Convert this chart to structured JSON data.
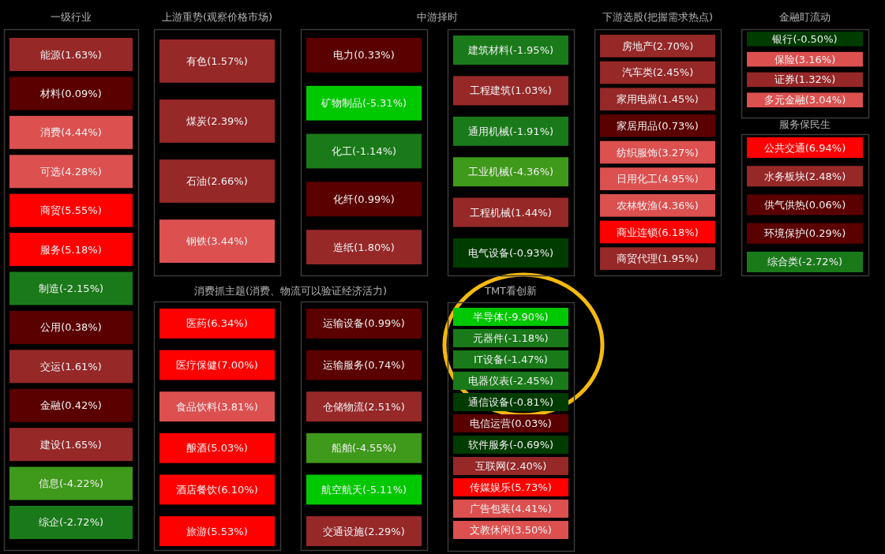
{
  "chart_data": [
    {
      "type": "other",
      "title": "一级行业",
      "values": [
        1.63,
        0.09,
        4.44,
        4.28,
        5.55,
        5.18,
        -2.15,
        0.38,
        1.61,
        0.42,
        1.65,
        -4.22,
        -2.72
      ],
      "value_labels": [
        "能源(1.63%)",
        "材料(0.09%)",
        "消费(4.44%)",
        "可选(4.28%)",
        "商贸(5.55%)",
        "服务(5.18%)",
        "制造(-2.15%)",
        "公用(0.38%)",
        "交运(1.61%)",
        "金融(0.42%)",
        "建设(1.65%)",
        "信息(-4.22%)",
        "综企(-2.72%)"
      ]
    },
    {
      "type": "other",
      "title": "上游重势(观察价格市场)",
      "values": [
        1.57,
        2.39,
        2.66,
        3.44
      ],
      "value_labels": [
        "有色(1.57%)",
        "煤炭(2.39%)",
        "石油(2.66%)",
        "钢铁(3.44%)"
      ]
    },
    {
      "type": "other",
      "title": "中游择时",
      "values": [
        0.33,
        -5.31,
        -1.14,
        0.99,
        1.8
      ],
      "value_labels": [
        "电力(0.33%)",
        "矿物制品(-5.31%)",
        "化工(-1.14%)",
        "化纤(0.99%)",
        "造纸(1.80%)"
      ]
    },
    {
      "type": "other",
      "values": [
        -1.95,
        1.03,
        -1.91,
        -4.36,
        1.44,
        -0.93
      ],
      "value_labels": [
        "建筑材料(-1.95%)",
        "工程建筑(1.03%)",
        "通用机械(-1.91%)",
        "工业机械(-4.36%)",
        "工程机械(1.44%)",
        "电气设备(-0.93%)"
      ]
    },
    {
      "type": "other",
      "title": "下游选股(把握需求热点)",
      "values": [
        2.7,
        2.45,
        1.45,
        0.73,
        3.27,
        4.95,
        4.36,
        6.18,
        1.95
      ],
      "value_labels": [
        "房地产(2.70%)",
        "汽车类(2.45%)",
        "家用电器(1.45%)",
        "家居用品(0.73%)",
        "纺织服饰(3.27%)",
        "日用化工(4.95%)",
        "农林牧渔(4.36%)",
        "商业连锁(6.18%)",
        "商贸代理(1.95%)"
      ]
    },
    {
      "type": "other",
      "title": "金融盯流动",
      "values": [
        -0.5,
        3.16,
        1.32,
        3.04
      ],
      "value_labels": [
        "银行(-0.50%)",
        "保险(3.16%)",
        "证券(1.32%)",
        "多元金融(3.04%)"
      ]
    },
    {
      "type": "other",
      "title": "服务保民生",
      "values": [
        6.94,
        2.48,
        0.06,
        0.29,
        -2.72
      ],
      "value_labels": [
        "公共交通(6.94%)",
        "水务板块(2.48%)",
        "供气供热(0.06%)",
        "环境保护(0.29%)",
        "综合类(-2.72%)"
      ]
    },
    {
      "type": "other",
      "title": "消费抓主题(消费、物流可以验证经济活力)",
      "values": [
        6.34,
        7.0,
        3.81,
        5.03,
        6.1,
        5.53
      ],
      "value_labels": [
        "医药(6.34%)",
        "医疗保健(7.00%)",
        "食品饮料(3.81%)",
        "酿酒(5.03%)",
        "酒店餐饮(6.10%)",
        "旅游(5.53%)"
      ]
    },
    {
      "type": "other",
      "values": [
        0.99,
        0.74,
        2.51,
        -4.55,
        -5.11,
        2.29
      ],
      "value_labels": [
        "运输设备(0.99%)",
        "运输服务(0.74%)",
        "仓储物流(2.51%)",
        "船舶(-4.55%)",
        "航空航天(-5.11%)",
        "交通设施(2.29%)"
      ]
    },
    {
      "type": "other",
      "title": "TMT看创新",
      "values": [
        -9.9,
        -1.18,
        -1.47,
        -2.45,
        -0.81,
        0.03,
        -0.69,
        2.4,
        5.73,
        4.41,
        3.5
      ],
      "value_labels": [
        "半导体(-9.90%)",
        "元器件(-1.18%)",
        "IT设备(-1.47%)",
        "电器仪表(-2.45%)",
        "通信设备(-0.81%)",
        "电信运营(0.03%)",
        "软件服务(-0.69%)",
        "互联网(2.40%)",
        "传媒娱乐(5.73%)",
        "广告包装(4.41%)",
        "文教休闲(3.50%)"
      ]
    }
  ]
}
